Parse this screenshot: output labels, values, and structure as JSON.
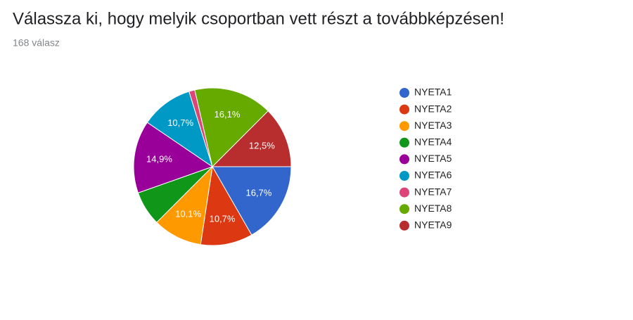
{
  "chart_data": {
    "type": "pie",
    "title": "Válassza ki, hogy melyik csoportban vett részt a továbbképzésen!",
    "subtitle": "168 válasz",
    "categories": [
      "NYETA1",
      "NYETA2",
      "NYETA3",
      "NYETA4",
      "NYETA5",
      "NYETA6",
      "NYETA7",
      "NYETA8",
      "NYETA9"
    ],
    "values": [
      16.7,
      10.7,
      10.1,
      7.1,
      14.9,
      10.7,
      1.2,
      16.1,
      12.5
    ],
    "value_labels": [
      "16,7%",
      "10,7%",
      "10,1%",
      null,
      "14,9%",
      "10,7%",
      null,
      "16,1%",
      "12,5%"
    ],
    "colors": [
      "#3366cc",
      "#dc3912",
      "#ff9900",
      "#109618",
      "#990099",
      "#0099c6",
      "#dd4477",
      "#66aa00",
      "#b82e2e"
    ],
    "legend": "right"
  }
}
